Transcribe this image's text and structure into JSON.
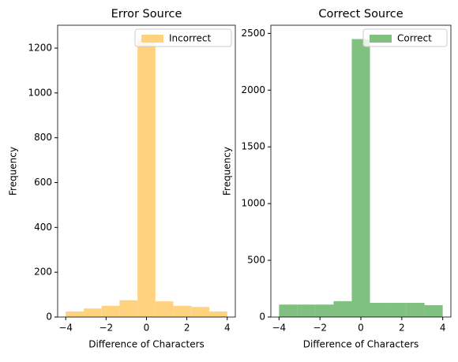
{
  "chart_data": [
    {
      "type": "histogram",
      "title": "Error Source",
      "xlabel": "Difference of Characters",
      "ylabel": "Frequency",
      "bins": [
        -4,
        -3.111,
        -2.222,
        -1.333,
        -0.444,
        0.444,
        1.333,
        2.222,
        3.111,
        4
      ],
      "series": [
        {
          "name": "Incorrect",
          "color": "#ffd280",
          "values": [
            25,
            38,
            50,
            75,
            1240,
            70,
            50,
            45,
            25
          ]
        }
      ],
      "xlim": [
        -4.4,
        4.4
      ],
      "ylim": [
        0,
        1302
      ],
      "xticks": [
        {
          "value": -4,
          "label": "−4"
        },
        {
          "value": -2,
          "label": "−2"
        },
        0,
        2,
        4
      ],
      "yticks": [
        0,
        200,
        400,
        600,
        800,
        1000,
        1200
      ],
      "legend": "upper right"
    },
    {
      "type": "histogram",
      "title": "Correct Source",
      "xlabel": "Difference of Characters",
      "ylabel": "Frequency",
      "bins": [
        -4,
        -3.111,
        -2.222,
        -1.333,
        -0.444,
        0.444,
        1.333,
        2.222,
        3.111,
        4
      ],
      "series": [
        {
          "name": "Correct",
          "color": "#80c080",
          "values": [
            110,
            110,
            110,
            140,
            2450,
            125,
            125,
            125,
            105
          ]
        }
      ],
      "xlim": [
        -4.4,
        4.4
      ],
      "ylim": [
        0,
        2572
      ],
      "xticks": [
        {
          "value": -4,
          "label": "−4"
        },
        {
          "value": -2,
          "label": "−2"
        },
        0,
        2,
        4
      ],
      "yticks": [
        0,
        500,
        1000,
        1500,
        2000,
        2500
      ],
      "legend": "upper right"
    }
  ]
}
